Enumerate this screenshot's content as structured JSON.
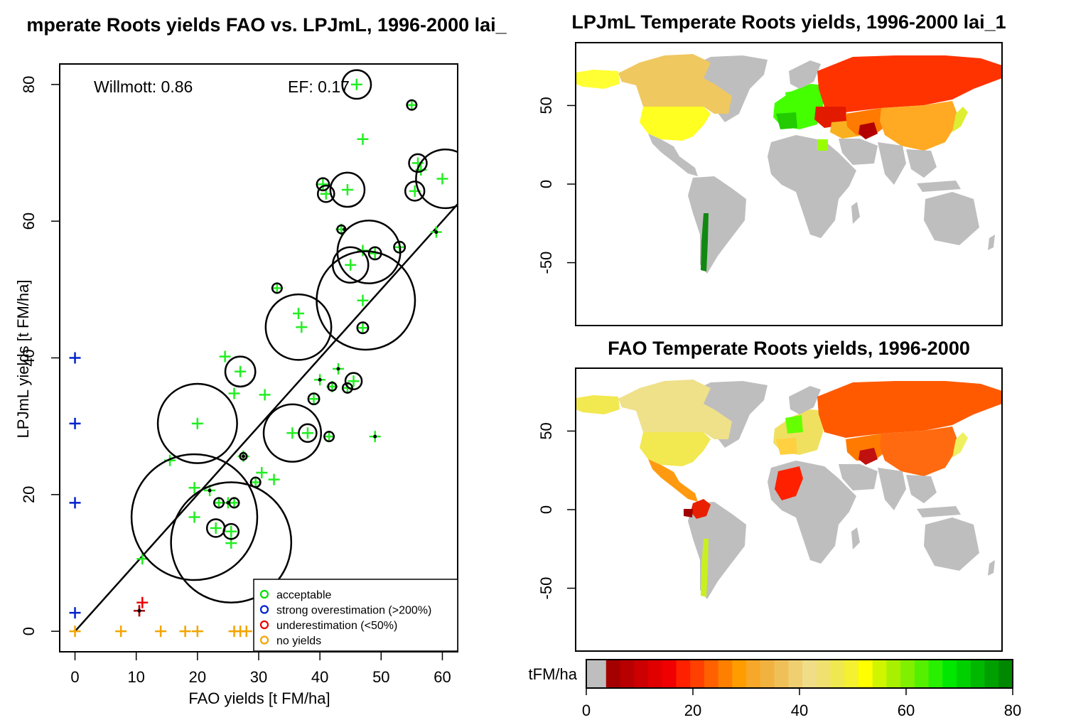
{
  "chart_data": [
    {
      "type": "scatter",
      "title": "mperate Roots yields FAO vs. LPJmL, 1996-2000 lai_",
      "xlabel": "FAO yields [t FM/ha]",
      "ylabel": "LPJmL yields [t FM/ha]",
      "xlim": [
        -2.5,
        62.5
      ],
      "ylim": [
        -3,
        83
      ],
      "x_ticks": [
        "0",
        "10",
        "20",
        "30",
        "40",
        "50",
        "60"
      ],
      "y_ticks": [
        "0",
        "20",
        "40",
        "60",
        "80"
      ],
      "annotations": {
        "willmott": "Willmott: 0.86",
        "ef": "EF: 0.17"
      },
      "fit_line": {
        "x1": 0,
        "y1": 0,
        "x2": 62.5,
        "y2": 62.5
      },
      "legend": {
        "position": "bottom-right",
        "entries": [
          {
            "label": "acceptable",
            "color": "#00e000"
          },
          {
            "label": "strong overestimation (>200%)",
            "color": "#0022cc"
          },
          {
            "label": "underestimation (<50%)",
            "color": "#ee0000"
          },
          {
            "label": "no yields",
            "color": "#f2a400"
          }
        ]
      },
      "groups": [
        {
          "name": "acceptable",
          "color": "#22ee22",
          "points": [
            [
              46,
              80
            ],
            [
              55,
              77
            ],
            [
              47,
              72
            ],
            [
              56,
              68.5
            ],
            [
              55.5,
              64.4
            ],
            [
              56.5,
              67.5
            ],
            [
              60,
              66.2
            ],
            [
              44.5,
              64.6
            ],
            [
              41,
              64
            ],
            [
              40.5,
              65.4
            ],
            [
              43.5,
              58.8
            ],
            [
              59,
              58.4
            ],
            [
              47,
              55.7
            ],
            [
              49,
              55.3
            ],
            [
              53,
              56.2
            ],
            [
              45,
              53.6
            ],
            [
              47,
              48.4
            ],
            [
              33,
              50.2
            ],
            [
              36.5,
              46.5
            ],
            [
              37,
              44.5
            ],
            [
              47,
              44.4
            ],
            [
              24.5,
              40.2
            ],
            [
              27,
              38
            ],
            [
              40,
              36.8
            ],
            [
              42,
              35.8
            ],
            [
              43,
              38.4
            ],
            [
              44.5,
              35.6
            ],
            [
              45.5,
              36.6
            ],
            [
              26,
              34.8
            ],
            [
              31,
              34.6
            ],
            [
              20,
              30.4
            ],
            [
              35.5,
              29
            ],
            [
              38,
              29
            ],
            [
              39,
              34
            ],
            [
              41.5,
              28.5
            ],
            [
              49,
              28.5
            ],
            [
              27.5,
              25.6
            ],
            [
              15.5,
              25
            ],
            [
              29.5,
              21.8
            ],
            [
              30.5,
              23.2
            ],
            [
              32.5,
              22.2
            ],
            [
              22,
              20.6
            ],
            [
              19.5,
              21
            ],
            [
              23.5,
              18.8
            ],
            [
              25,
              18.8
            ],
            [
              26,
              18.8
            ],
            [
              19.5,
              16.7
            ],
            [
              23,
              15.1
            ],
            [
              25.5,
              14.6
            ],
            [
              25.5,
              12.9
            ],
            [
              11,
              10.6
            ]
          ]
        },
        {
          "name": "strong overestimation",
          "color": "#0022cc",
          "points": [
            [
              0,
              40
            ],
            [
              0,
              30.4
            ],
            [
              0,
              18.8
            ],
            [
              0,
              2.7
            ]
          ]
        },
        {
          "name": "underestimation",
          "color": "#ee0000",
          "points": [
            [
              11,
              4.2
            ],
            [
              10.5,
              3
            ]
          ]
        },
        {
          "name": "underestimation dark",
          "color": "#aa1111",
          "points": [
            [
              10.5,
              3
            ]
          ]
        },
        {
          "name": "no yields",
          "color": "#f2a400",
          "points": [
            [
              0,
              0
            ],
            [
              7.5,
              0
            ],
            [
              14,
              0
            ],
            [
              18,
              0
            ],
            [
              20,
              0
            ],
            [
              26,
              0
            ],
            [
              27,
              0
            ],
            [
              28,
              0
            ],
            [
              32,
              0
            ],
            [
              33,
              0
            ]
          ]
        }
      ],
      "circles": [
        {
          "x": 46,
          "y": 80,
          "r": 2.1
        },
        {
          "x": 55,
          "y": 77,
          "r": 0.7
        },
        {
          "x": 56,
          "y": 68.5,
          "r": 1.3
        },
        {
          "x": 55.5,
          "y": 64.4,
          "r": 1.4
        },
        {
          "x": 60.5,
          "y": 66.2,
          "r": 4.3
        },
        {
          "x": 44.5,
          "y": 64.6,
          "r": 2.5
        },
        {
          "x": 41,
          "y": 64,
          "r": 1.2
        },
        {
          "x": 40.5,
          "y": 65.4,
          "r": 0.9
        },
        {
          "x": 43.5,
          "y": 58.8,
          "r": 0.6
        },
        {
          "x": 49,
          "y": 55.3,
          "r": 0.9
        },
        {
          "x": 53,
          "y": 56.2,
          "r": 0.8
        },
        {
          "x": 48,
          "y": 55.5,
          "r": 4.6
        },
        {
          "x": 45,
          "y": 53.6,
          "r": 2.6
        },
        {
          "x": 47.5,
          "y": 48.4,
          "r": 7.2
        },
        {
          "x": 33,
          "y": 50.2,
          "r": 0.7
        },
        {
          "x": 36.5,
          "y": 44.5,
          "r": 4.8
        },
        {
          "x": 47,
          "y": 44.4,
          "r": 0.8
        },
        {
          "x": 27,
          "y": 38,
          "r": 2.2
        },
        {
          "x": 45.5,
          "y": 36.6,
          "r": 1.2
        },
        {
          "x": 44.5,
          "y": 35.6,
          "r": 0.7
        },
        {
          "x": 42,
          "y": 35.8,
          "r": 0.6
        },
        {
          "x": 39,
          "y": 34,
          "r": 0.8
        },
        {
          "x": 41.5,
          "y": 28.5,
          "r": 0.7
        },
        {
          "x": 35.5,
          "y": 29,
          "r": 4.2
        },
        {
          "x": 38,
          "y": 29,
          "r": 1.3
        },
        {
          "x": 20,
          "y": 30.4,
          "r": 5.8
        },
        {
          "x": 27.5,
          "y": 25.6,
          "r": 0.5
        },
        {
          "x": 29.5,
          "y": 21.8,
          "r": 0.7
        },
        {
          "x": 23.5,
          "y": 18.8,
          "r": 0.7
        },
        {
          "x": 26,
          "y": 18.8,
          "r": 0.7
        },
        {
          "x": 19.5,
          "y": 16.7,
          "r": 9.2
        },
        {
          "x": 25.5,
          "y": 13,
          "r": 8.8
        },
        {
          "x": 23,
          "y": 15.1,
          "r": 1.3
        },
        {
          "x": 25.5,
          "y": 14.6,
          "r": 1.1
        }
      ],
      "dots": [
        [
          40,
          36.8
        ],
        [
          43,
          38.4
        ],
        [
          44,
          58.8
        ],
        [
          22,
          20.6
        ],
        [
          25,
          18.8
        ],
        [
          59,
          58.4
        ],
        [
          27.5,
          25.6
        ],
        [
          49,
          28.5
        ],
        [
          10.5,
          3
        ]
      ]
    },
    {
      "type": "heatmap",
      "title": "LPJmL Temperate Roots yields, 1996-2000 lai_1",
      "y_ticks": [
        "50",
        "0",
        "-50"
      ],
      "ylim": [
        -90,
        90
      ]
    },
    {
      "type": "heatmap",
      "title": "FAO Temperate Roots yields, 1996-2000",
      "y_ticks": [
        "50",
        "0",
        "-50"
      ],
      "ylim": [
        -90,
        90
      ]
    },
    {
      "type": "colorbar",
      "unit_label": "tFM/ha",
      "ticks": [
        "0",
        "20",
        "40",
        "60",
        "80"
      ],
      "range": [
        0,
        80
      ],
      "no_data_color": "#bebebe",
      "colors": [
        "#a50000",
        "#b80000",
        "#cc0000",
        "#e00000",
        "#f00000",
        "#ff2000",
        "#ff4000",
        "#ff6000",
        "#ff8000",
        "#ff9d00",
        "#f7a82a",
        "#f2b240",
        "#f0c058",
        "#f0cf70",
        "#efdd88",
        "#efe070",
        "#f0e850",
        "#f5f030",
        "#ffff00",
        "#d0f500",
        "#a8f000",
        "#80f000",
        "#55f000",
        "#28f000",
        "#00e800",
        "#00d000",
        "#00b800",
        "#00a000",
        "#008800"
      ]
    },
    {
      "type": "map-colors",
      "lpjml": {
        "russia": "#ff3300",
        "east_europe": "#e21a00",
        "central_asia": "#ff7a00",
        "afghan": "#b20000",
        "china": "#ffaa22",
        "canada": "#f0c860",
        "usa": "#ffff22",
        "alaska": "#ffff33",
        "spain": "#22cc00",
        "europe_green": "#44ff00",
        "japan": "#ddee33",
        "chile": "#118811",
        "egypt": "#99ff00",
        "turkey": "#f8b020",
        "nodata": "#bebebe"
      },
      "fao": {
        "russia": "#ff5a00",
        "central_asia": "#ff7a00",
        "afghan": "#c01010",
        "china": "#ff6a10",
        "canada": "#efe08a",
        "usa": "#f2e850",
        "alaska": "#f2e850",
        "mexico": "#ff9a10",
        "colombia": "#e82000",
        "ecuador": "#a00000",
        "north_africa": "#ff2000",
        "chile": "#c8f020",
        "europe_green": "#66ff00",
        "japan": "#eef060",
        "nodata": "#bebebe"
      }
    }
  ]
}
